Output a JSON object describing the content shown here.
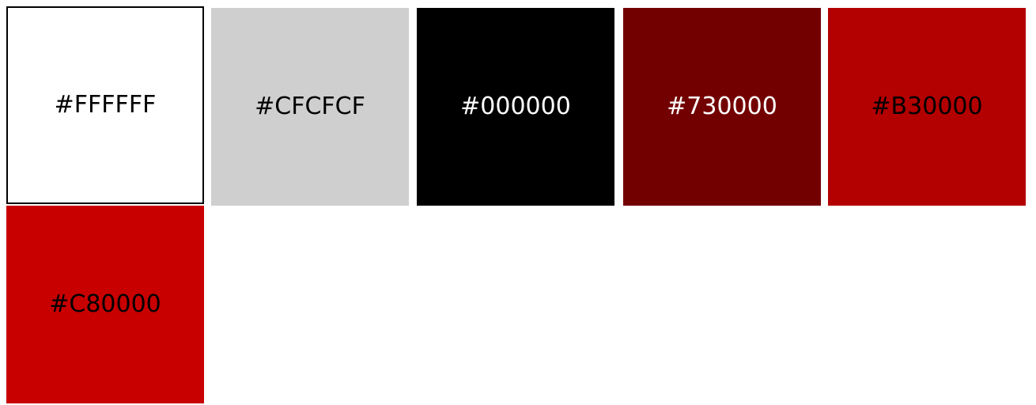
{
  "swatches": [
    {
      "label": "#FFFFFF",
      "color": "#FFFFFF",
      "text_color": "#000000",
      "outlined": true
    },
    {
      "label": "#CFCFCF",
      "color": "#CFCFCF",
      "text_color": "#000000",
      "outlined": false
    },
    {
      "label": "#000000",
      "color": "#000000",
      "text_color": "#FFFFFF",
      "outlined": false
    },
    {
      "label": "#730000",
      "color": "#730000",
      "text_color": "#FFFFFF",
      "outlined": false
    },
    {
      "label": "#B30000",
      "color": "#B30000",
      "text_color": "#000000",
      "outlined": false
    },
    {
      "label": "#C80000",
      "color": "#C80000",
      "text_color": "#000000",
      "outlined": false
    }
  ]
}
